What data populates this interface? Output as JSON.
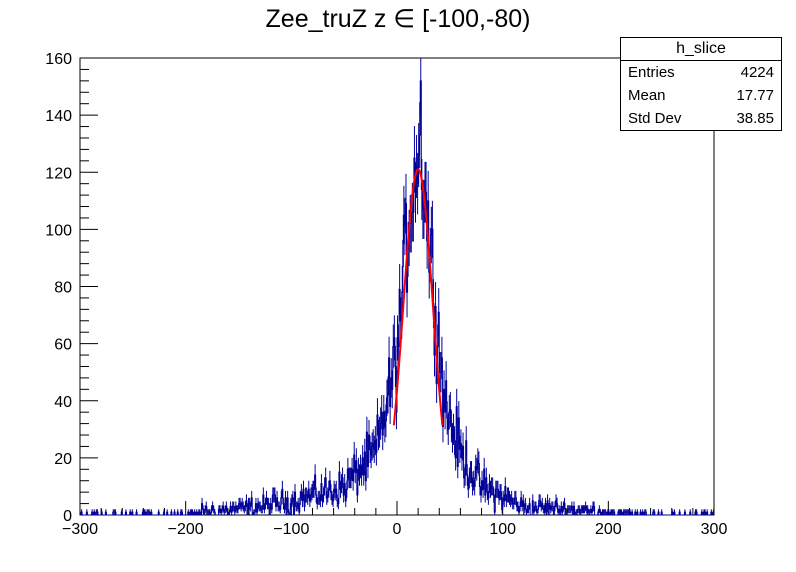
{
  "chart_data": {
    "type": "histogram",
    "title": "Zee_truZ z ∈ [-100,-80)",
    "xlim": [
      -300,
      300
    ],
    "ylim": [
      0,
      160
    ],
    "x_ticks": [
      -300,
      -200,
      -100,
      0,
      100,
      200,
      300
    ],
    "x_tick_labels": [
      "−300",
      "−200",
      "−100",
      "0",
      "100",
      "200",
      "300"
    ],
    "y_ticks": [
      0,
      20,
      40,
      60,
      80,
      100,
      120,
      140,
      160
    ],
    "y_tick_labels": [
      "0",
      "20",
      "40",
      "60",
      "80",
      "100",
      "120",
      "140",
      "160"
    ],
    "bin_width": 1,
    "series": [
      {
        "name": "h_slice",
        "style": "histogram-with-error-bars",
        "color": "#000099",
        "profile": {
          "peak_x": 18,
          "peak_y": 125,
          "approx_values": [
            [
              -100,
              5
            ],
            [
              -50,
              10
            ],
            [
              -20,
              22
            ],
            [
              0,
              55
            ],
            [
              10,
              100
            ],
            [
              18,
              125
            ],
            [
              25,
              118
            ],
            [
              35,
              80
            ],
            [
              45,
              40
            ],
            [
              60,
              22
            ],
            [
              80,
              10
            ],
            [
              120,
              3
            ],
            [
              200,
              1
            ]
          ],
          "max_bin": [
            22,
            152
          ]
        }
      },
      {
        "name": "gaussian fit",
        "style": "line",
        "color": "#ff0000",
        "mean": 20,
        "sigma": 14,
        "amplitude": 121,
        "range": [
          -3,
          43
        ]
      }
    ],
    "stats": {
      "name": "h_slice",
      "entries_label": "Entries",
      "entries": "4224",
      "mean_label": "Mean",
      "mean": "17.77",
      "std_label": "Std Dev",
      "std": "38.85"
    }
  }
}
